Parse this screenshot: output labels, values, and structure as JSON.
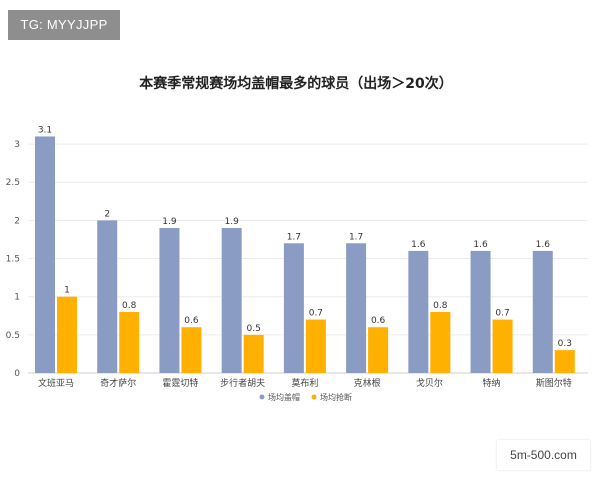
{
  "watermarks": {
    "top_left": "TG: MYYJJPP",
    "bottom_right": "5m-500.com"
  },
  "chart_data": {
    "type": "bar",
    "title": "本赛季常规赛场均盖帽最多的球员（出场＞20次）",
    "categories": [
      "文班亚马",
      "奇才萨尔",
      "霍霆切特",
      "步行者胡夫",
      "莫布利",
      "克林根",
      "戈贝尔",
      "特纳",
      "斯图尔特"
    ],
    "series": [
      {
        "name": "场均盖帽",
        "color": "#8b9cc4",
        "values": [
          3.1,
          2,
          1.9,
          1.9,
          1.7,
          1.7,
          1.6,
          1.6,
          1.6
        ]
      },
      {
        "name": "场均抢断",
        "color": "#ffb000",
        "values": [
          1,
          0.8,
          0.6,
          0.5,
          0.7,
          0.6,
          0.8,
          0.7,
          0.3
        ]
      }
    ],
    "y_ticks": [
      0,
      0.5,
      1,
      1.5,
      2,
      2.5,
      3
    ],
    "ylim": [
      0,
      3.25
    ],
    "grid": true,
    "legend_position": "bottom-center"
  }
}
